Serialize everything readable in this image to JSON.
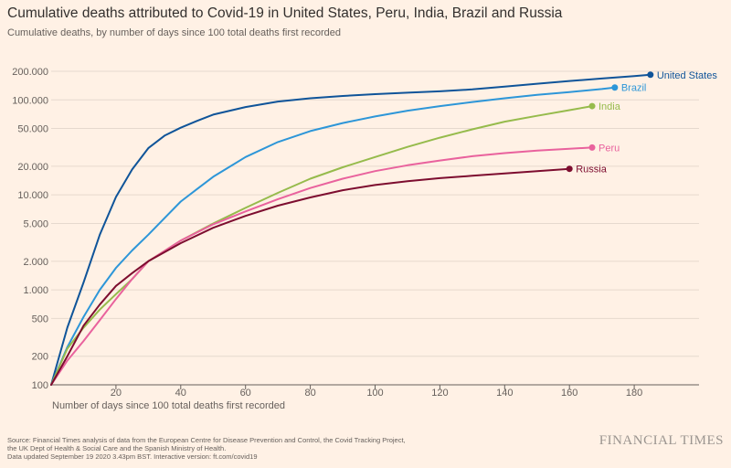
{
  "title": "Cumulative deaths attributed to Covid-19 in United States, Peru, India, Brazil and Russia",
  "subtitle": "Cumulative deaths, by number of days since 100 total deaths first recorded",
  "source_lines": [
    "Source: Financial Times analysis of data from the European Centre for Disease Prevention and Control, the Covid Tracking Project,",
    "the UK Dept of Health & Social Care and the Spanish Ministry of Health.",
    "Data updated September 19 2020 3.43pm BST. Interactive version: ft.com/covid19"
  ],
  "brand": "FINANCIAL TIMES",
  "chart_data": {
    "type": "line",
    "xlabel": "Number of days since 100 total deaths first recorded",
    "ylabel": "",
    "yscale": "log",
    "xlim": [
      0,
      200
    ],
    "ylim": [
      100,
      200000
    ],
    "x_ticks": [
      20,
      40,
      60,
      80,
      100,
      120,
      140,
      160,
      180
    ],
    "x_tick_labels": [
      "20",
      "40",
      "60",
      "80",
      "100",
      "120",
      "140",
      "160",
      "180"
    ],
    "y_ticks": [
      100,
      200,
      500,
      1000,
      2000,
      5000,
      10000,
      20000,
      50000,
      100000,
      200000
    ],
    "y_tick_labels": [
      "100",
      "200",
      "500",
      "1.000",
      "2.000",
      "5.000",
      "10.000",
      "20.000",
      "50.000",
      "100.000",
      "200.000"
    ],
    "grid": "horizontal",
    "series": [
      {
        "name": "United States",
        "color": "#0f5499",
        "x": [
          0,
          5,
          10,
          15,
          20,
          25,
          30,
          35,
          40,
          45,
          50,
          60,
          70,
          80,
          90,
          100,
          110,
          120,
          130,
          140,
          150,
          160,
          170,
          180,
          185
        ],
        "y": [
          100,
          400,
          1200,
          3800,
          9500,
          18500,
          31000,
          42000,
          51000,
          60000,
          70000,
          84000,
          96000,
          104000,
          110000,
          115000,
          119000,
          123000,
          129000,
          138000,
          148000,
          158000,
          168000,
          178000,
          184000
        ]
      },
      {
        "name": "Brazil",
        "color": "#2d96d8",
        "x": [
          0,
          5,
          10,
          15,
          20,
          25,
          30,
          35,
          40,
          45,
          50,
          60,
          70,
          80,
          90,
          100,
          110,
          120,
          130,
          140,
          150,
          160,
          170,
          174
        ],
        "y": [
          100,
          250,
          520,
          1000,
          1700,
          2600,
          3800,
          5700,
          8500,
          11500,
          15500,
          25000,
          36000,
          47000,
          57000,
          67000,
          77000,
          86000,
          95000,
          104000,
          113000,
          121000,
          130000,
          135000
        ]
      },
      {
        "name": "India",
        "color": "#96bb4c",
        "x": [
          0,
          5,
          10,
          15,
          20,
          25,
          30,
          40,
          50,
          60,
          70,
          80,
          90,
          100,
          110,
          120,
          130,
          140,
          150,
          160,
          167
        ],
        "y": [
          100,
          240,
          400,
          620,
          900,
          1300,
          2000,
          3300,
          5000,
          7300,
          10500,
          14800,
          19500,
          25000,
          32000,
          40000,
          49000,
          59000,
          68000,
          78000,
          86000
        ]
      },
      {
        "name": "Peru",
        "color": "#e9629d",
        "x": [
          0,
          5,
          10,
          15,
          20,
          25,
          30,
          40,
          50,
          60,
          70,
          80,
          90,
          100,
          110,
          120,
          130,
          140,
          150,
          160,
          167
        ],
        "y": [
          100,
          180,
          290,
          480,
          800,
          1300,
          2000,
          3300,
          4900,
          6700,
          9000,
          11800,
          14800,
          17800,
          20500,
          23000,
          25500,
          27500,
          29200,
          30600,
          31500
        ]
      },
      {
        "name": "Russia",
        "color": "#7d0d2f",
        "x": [
          0,
          5,
          10,
          15,
          20,
          25,
          30,
          40,
          50,
          60,
          70,
          80,
          90,
          100,
          110,
          120,
          130,
          140,
          150,
          160
        ],
        "y": [
          100,
          200,
          420,
          700,
          1100,
          1500,
          2000,
          3100,
          4500,
          6000,
          7700,
          9400,
          11200,
          12700,
          13900,
          15000,
          15900,
          16800,
          17800,
          18800
        ]
      }
    ]
  }
}
